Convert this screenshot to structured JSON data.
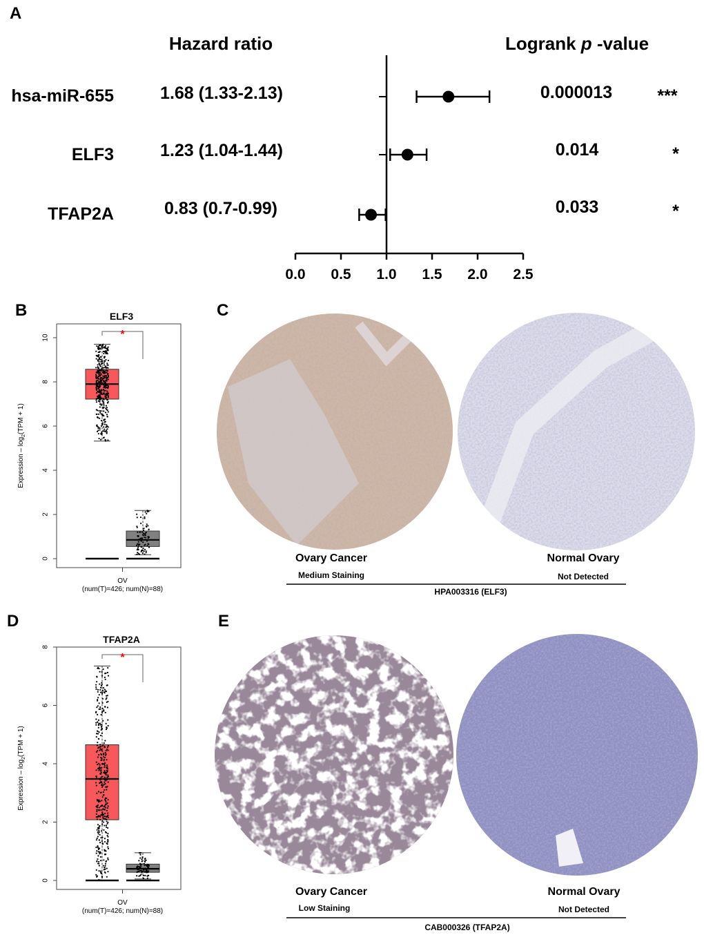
{
  "panels": {
    "a": "A",
    "b": "B",
    "c": "C",
    "d": "D",
    "e": "E"
  },
  "chart_data": [
    {
      "type": "forest",
      "headers": {
        "hazard_ratio": "Hazard ratio",
        "logrank_prefix": "Logrank ",
        "logrank_p": "p",
        "logrank_suffix": " -value"
      },
      "rows": [
        {
          "label": "hsa-miR-655",
          "hr_text": "1.68 (1.33-2.13)",
          "hr": 1.68,
          "ci": [
            1.33,
            2.13
          ],
          "p_text": "0.000013",
          "sig": "***"
        },
        {
          "label": "ELF3",
          "hr_text": "1.23 (1.04-1.44)",
          "hr": 1.23,
          "ci": [
            1.04,
            1.44
          ],
          "p_text": "0.014",
          "sig": "*"
        },
        {
          "label": "TFAP2A",
          "hr_text": "0.83 (0.7-0.99)",
          "hr": 0.83,
          "ci": [
            0.7,
            0.99
          ],
          "p_text": "0.033",
          "sig": "*"
        }
      ],
      "xlim": [
        0,
        2.5
      ],
      "xticks": [
        "0.0",
        "0.5",
        "1.0",
        "1.5",
        "2.0",
        "2.5"
      ],
      "reference_line": 1.0
    },
    {
      "type": "boxplot",
      "title": "ELF3",
      "ylabel_prefix": "Expression – log",
      "ylabel_sub": "2",
      "ylabel_suffix": "(TPM + 1)",
      "ylim": [
        0,
        10
      ],
      "yticks": [
        "0",
        "2",
        "4",
        "6",
        "8",
        "10"
      ],
      "xlabel": "OV",
      "xsublabel": "(num(T)=426; num(N)=88)",
      "significance": "*",
      "groups": [
        {
          "n": 426,
          "color": "#f8585a",
          "whisker_low": 5.32,
          "q1": 7.22,
          "median": 7.9,
          "q3": 8.57,
          "whisker_high": 9.7
        },
        {
          "n": 88,
          "color": "#808080",
          "whisker_low": 0.18,
          "q1": 0.55,
          "median": 0.85,
          "q3": 1.25,
          "whisker_high": 2.18
        }
      ]
    },
    {
      "type": "boxplot",
      "title": "TFAP2A",
      "ylabel_prefix": "Expression – log",
      "ylabel_sub": "2",
      "ylabel_suffix": "(TPM + 1)",
      "ylim": [
        0,
        8
      ],
      "yticks": [
        "0",
        "2",
        "4",
        "6",
        "8"
      ],
      "xlabel": "OV",
      "xsublabel": "(num(T)=426; num(N)=88)",
      "significance": "*",
      "groups": [
        {
          "n": 426,
          "color": "#f8585a",
          "whisker_low": 0,
          "q1": 2.08,
          "median": 3.48,
          "q3": 4.65,
          "whisker_high": 7.35
        },
        {
          "n": 88,
          "color": "#808080",
          "whisker_low": 0.05,
          "q1": 0.28,
          "median": 0.4,
          "q3": 0.56,
          "whisker_high": 0.95
        }
      ]
    }
  ],
  "ihc": {
    "c": {
      "left_title": "Ovary Cancer",
      "left_status": "Medium Staining",
      "right_title": "Normal Ovary",
      "right_status": "Not Detected",
      "antibody": "HPA003316 (ELF3)"
    },
    "e": {
      "left_title": "Ovary Cancer",
      "left_status": "Low Staining",
      "right_title": "Normal Ovary",
      "right_status": "Not Detected",
      "antibody": "CAB000326 (TFAP2A)"
    }
  },
  "colors": {
    "tumor": "#f8585a",
    "normal": "#808080",
    "significance": "#ff0000"
  }
}
